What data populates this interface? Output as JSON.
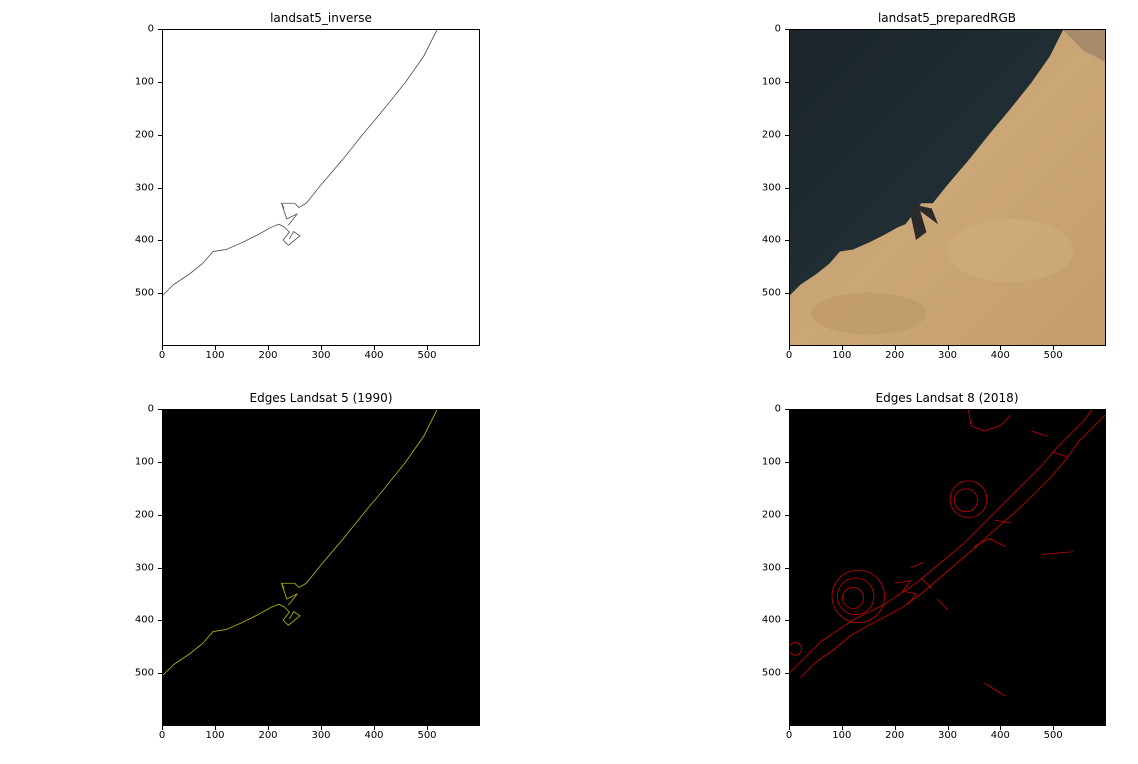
{
  "panels": [
    {
      "id": "p1",
      "title": "landsat5_inverse"
    },
    {
      "id": "p2",
      "title": "landsat5_preparedRGB"
    },
    {
      "id": "p3",
      "title": "Edges Landsat 5 (1990)"
    },
    {
      "id": "p4",
      "title": "Edges Landsat 8 (2018)"
    }
  ],
  "axes": {
    "x_ticks": [
      "0",
      "100",
      "200",
      "300",
      "400",
      "500"
    ],
    "y_ticks": [
      "0",
      "100",
      "200",
      "300",
      "400",
      "500"
    ]
  },
  "colors": {
    "inverse_line": "#555555",
    "landsat5_edge": "#b5b500",
    "landsat8_edge": "#c80000",
    "sea": "#1e2a30",
    "land": "#c9a270"
  }
}
